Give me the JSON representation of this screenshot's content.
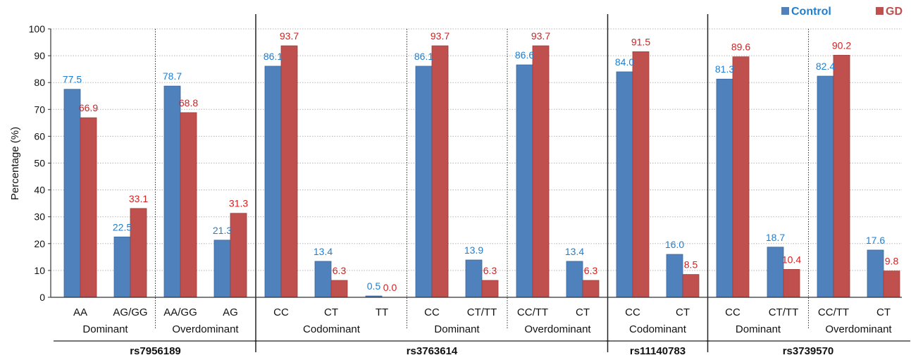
{
  "chart_data": {
    "type": "bar",
    "ylabel": "Percentage (%)",
    "ylim": [
      0,
      100
    ],
    "yticks": [
      0,
      10,
      20,
      30,
      40,
      50,
      60,
      70,
      80,
      90,
      100
    ],
    "grid": true,
    "legend_position": "top-right",
    "series": [
      {
        "name": "Control",
        "color": "#4f81bd",
        "label_color": "#1f7fd1",
        "values": [
          77.5,
          22.5,
          78.7,
          21.3,
          86.1,
          13.4,
          0.5,
          86.1,
          13.9,
          86.6,
          13.4,
          84.0,
          16.0,
          81.3,
          18.7,
          82.4,
          17.6
        ],
        "labels": [
          "77.5",
          "22.5",
          "78.7",
          "21.3",
          "86.1",
          "13.4",
          "0.5",
          "86.1",
          "13.9",
          "86.6",
          "13.4",
          "84.0",
          "16.0",
          "81.3",
          "18.7",
          "82.4",
          "17.6"
        ]
      },
      {
        "name": "GD",
        "color": "#c0504d",
        "label_color": "#d42020",
        "values": [
          66.9,
          33.1,
          68.8,
          31.3,
          93.7,
          6.3,
          0.0,
          93.7,
          6.3,
          93.7,
          6.3,
          91.5,
          8.5,
          89.6,
          10.4,
          90.2,
          9.8
        ],
        "labels": [
          "66.9",
          "33.1",
          "68.8",
          "31.3",
          "93.7",
          "6.3",
          "0.0",
          "93.7",
          "6.3",
          "93.7",
          "6.3",
          "91.5",
          "8.5",
          "89.6",
          "10.4",
          "90.2",
          "9.8"
        ]
      }
    ],
    "categories": [
      "AA",
      "AG/GG",
      "AA/GG",
      "AG",
      "CC",
      "CT",
      "TT",
      "CC",
      "CT/TT",
      "CC/TT",
      "CT",
      "CC",
      "CT",
      "CC",
      "CT/TT",
      "CC/TT",
      "CT"
    ],
    "models": [
      {
        "name": "Dominant",
        "start": 0,
        "end": 1
      },
      {
        "name": "Overdominant",
        "start": 2,
        "end": 3
      },
      {
        "name": "Codominant",
        "start": 4,
        "end": 6
      },
      {
        "name": "Dominant",
        "start": 7,
        "end": 8
      },
      {
        "name": "Overdominant",
        "start": 9,
        "end": 10
      },
      {
        "name": "Codominant",
        "start": 11,
        "end": 12
      },
      {
        "name": "Dominant",
        "start": 13,
        "end": 14
      },
      {
        "name": "Overdominant",
        "start": 15,
        "end": 16
      }
    ],
    "snps": [
      {
        "name": "rs7956189",
        "start": 0,
        "end": 3
      },
      {
        "name": "rs3763614",
        "start": 4,
        "end": 10
      },
      {
        "name": "rs11140783",
        "start": 11,
        "end": 12
      },
      {
        "name": "rs3739570",
        "start": 13,
        "end": 16
      }
    ]
  }
}
